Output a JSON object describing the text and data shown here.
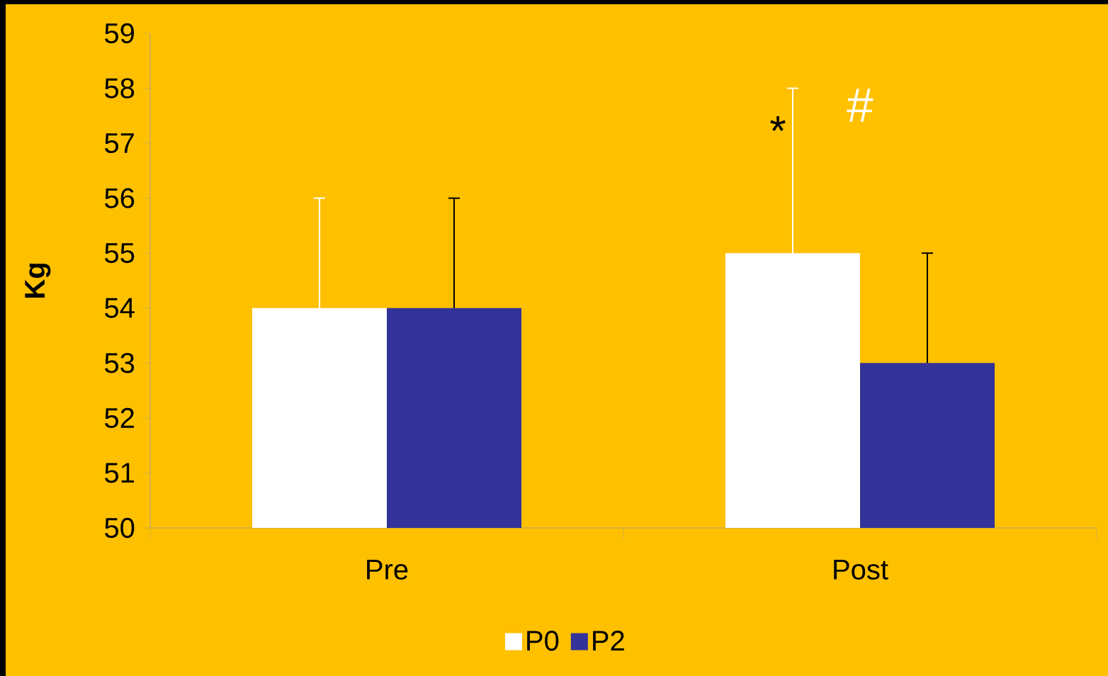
{
  "chart_data": {
    "type": "bar",
    "ylabel": "Kg",
    "categories": [
      "Pre",
      "Post"
    ],
    "series": [
      {
        "name": "P0",
        "color": "#ffffff",
        "values": [
          54,
          55
        ],
        "errors": [
          [
            54,
            56
          ],
          [
            55,
            58
          ]
        ]
      },
      {
        "name": "P2",
        "color": "#333399",
        "values": [
          54,
          53
        ],
        "errors": [
          [
            54,
            56
          ],
          [
            53,
            55
          ]
        ]
      }
    ],
    "ylim": [
      50,
      59
    ],
    "yticks": [
      50,
      51,
      52,
      53,
      54,
      55,
      56,
      57,
      58,
      59
    ],
    "annotations": [
      "*",
      "#"
    ],
    "legend": "bottom",
    "grid": false
  }
}
